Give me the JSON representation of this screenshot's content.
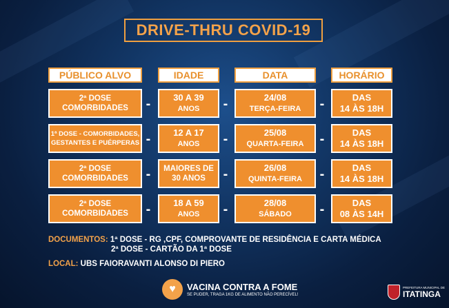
{
  "title": "DRIVE-THRU COVID-19",
  "headers": [
    "PÚBLICO ALVO",
    "IDADE",
    "DATA",
    "HORÁRIO"
  ],
  "rows": [
    {
      "publico": [
        "2ª DOSE",
        "COMORBIDADES"
      ],
      "idade": [
        "30 A 39",
        "ANOS"
      ],
      "data": [
        "24/08",
        "TERÇA-FEIRA"
      ],
      "horario": [
        "DAS",
        "14 ÀS 18H"
      ]
    },
    {
      "publico": [
        "1ª DOSE - COMORBIDADES,",
        "GESTANTES E PUÉRPERAS"
      ],
      "idade": [
        "12 A 17",
        "ANOS"
      ],
      "data": [
        "25/08",
        "QUARTA-FEIRA"
      ],
      "horario": [
        "DAS",
        "14 ÀS 18H"
      ]
    },
    {
      "publico": [
        "2ª DOSE",
        "COMORBIDADES"
      ],
      "idade": [
        "MAIORES DE",
        "30 ANOS"
      ],
      "data": [
        "26/08",
        "QUINTA-FEIRA"
      ],
      "horario": [
        "DAS",
        "14 ÀS 18H"
      ]
    },
    {
      "publico": [
        "2ª DOSE",
        "COMORBIDADES"
      ],
      "idade": [
        "18 A 59",
        "ANOS"
      ],
      "data": [
        "28/08",
        "SÁBADO"
      ],
      "horario": [
        "DAS",
        "08 ÀS 14H"
      ]
    }
  ],
  "separator": "-",
  "documentos": {
    "label": "DOCUMENTOS:",
    "line1": "1ª DOSE - RG ,CPF, COMPROVANTE DE RESIDÊNCIA E CARTA MÉDICA",
    "line2": "2ª DOSE - CARTÃO DA 1ª DOSE"
  },
  "local": {
    "label": "LOCAL:",
    "value": "UBS FAIORAVANTI ALONSO DI PIERO"
  },
  "footer": {
    "campaign_title": "VACINA CONTRA A FOME",
    "campaign_subtitle": "SE PUDER, TRAGA 1KG DE ALIMENTO NÃO PERECÍVEL!",
    "prefeitura_label": "PREFEITURA MUNICIPAL DE",
    "city": "ITATINGA"
  },
  "colors": {
    "accent_orange": "#ef8f2e",
    "background_blue": "#123665"
  }
}
